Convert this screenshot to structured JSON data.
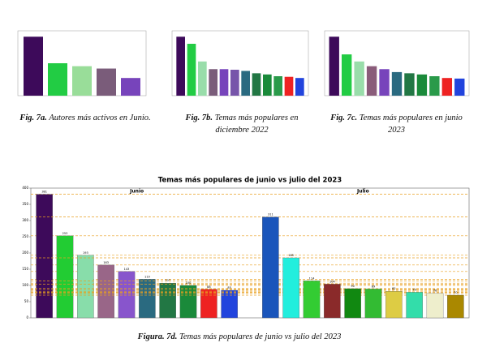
{
  "chart_data": [
    {
      "type": "bar",
      "caption_label": "Fig. 7a.",
      "caption": "Autores más activos en Junio.",
      "categories": [
        null,
        null,
        null,
        null,
        null
      ],
      "values": [
        100,
        55,
        50,
        46,
        30
      ],
      "colors": [
        "#3d0a5a",
        "#22cc44",
        "#99dd99",
        "#7a5c7a",
        "#7744bb"
      ],
      "ylim": [
        0,
        110
      ]
    },
    {
      "type": "bar",
      "caption_label": "Fig. 7b.",
      "caption": "Temas más populares en diciembre 2022",
      "categories": [
        null,
        null,
        null,
        null,
        null,
        null,
        null,
        null,
        null,
        null,
        null,
        null
      ],
      "values": [
        100,
        88,
        58,
        45,
        45,
        44,
        42,
        38,
        36,
        33,
        32,
        30
      ],
      "colors": [
        "#3d0a5a",
        "#22cc44",
        "#99ddaa",
        "#7a5c7a",
        "#7744bb",
        "#7755aa",
        "#2a6a80",
        "#227744",
        "#1a8a3a",
        "#2a9a4a",
        "#ee2222",
        "#2244dd"
      ],
      "ylim": [
        0,
        110
      ]
    },
    {
      "type": "bar",
      "caption_label": "Fig. 7c.",
      "caption": "Temas más populares en junio 2023",
      "categories": [
        null,
        null,
        null,
        null,
        null,
        null,
        null,
        null,
        null,
        null,
        null
      ],
      "values": [
        100,
        70,
        58,
        50,
        45,
        40,
        38,
        36,
        33,
        30,
        29
      ],
      "colors": [
        "#3d0a5a",
        "#22cc44",
        "#99ddaa",
        "#8a5c7a",
        "#7744bb",
        "#2a6a80",
        "#227744",
        "#1a8a3a",
        "#2a9a4a",
        "#ee2222",
        "#2244dd"
      ],
      "ylim": [
        0,
        110
      ]
    },
    {
      "type": "grouped-bar",
      "title": "Temas más populares de junio vs julio del 2023",
      "caption_label": "Figura. 7d.",
      "caption": "Temas más populares de junio vs julio del 2023",
      "ylim": [
        0,
        400
      ],
      "yticks": [
        0,
        50,
        100,
        150,
        200,
        250,
        300,
        350,
        400
      ],
      "series": [
        {
          "name": "Junio",
          "categories": [
            null,
            null,
            null,
            null,
            null,
            null,
            null,
            null,
            null,
            null
          ],
          "values": [
            381,
            253,
            193,
            163,
            143,
            119,
            107,
            100,
            88,
            85
          ],
          "colors": [
            "#3d0a5a",
            "#22cc33",
            "#88ddaa",
            "#996688",
            "#8855cc",
            "#2a6a80",
            "#227744",
            "#1a8a3a",
            "#ee2222",
            "#2244dd"
          ]
        },
        {
          "name": "Julio",
          "categories": [
            null,
            null,
            null,
            null,
            null,
            null,
            null,
            null,
            null,
            null
          ],
          "values": [
            311,
            185,
            114,
            104,
            90,
            89,
            82,
            79,
            76,
            70
          ],
          "colors": [
            "#1a55bb",
            "#22eedd",
            "#33cc33",
            "#8a2a2a",
            "#118811",
            "#33bb33",
            "#ddcc44",
            "#33ddaa",
            "#eeeecc",
            "#aa8800"
          ]
        }
      ]
    }
  ]
}
